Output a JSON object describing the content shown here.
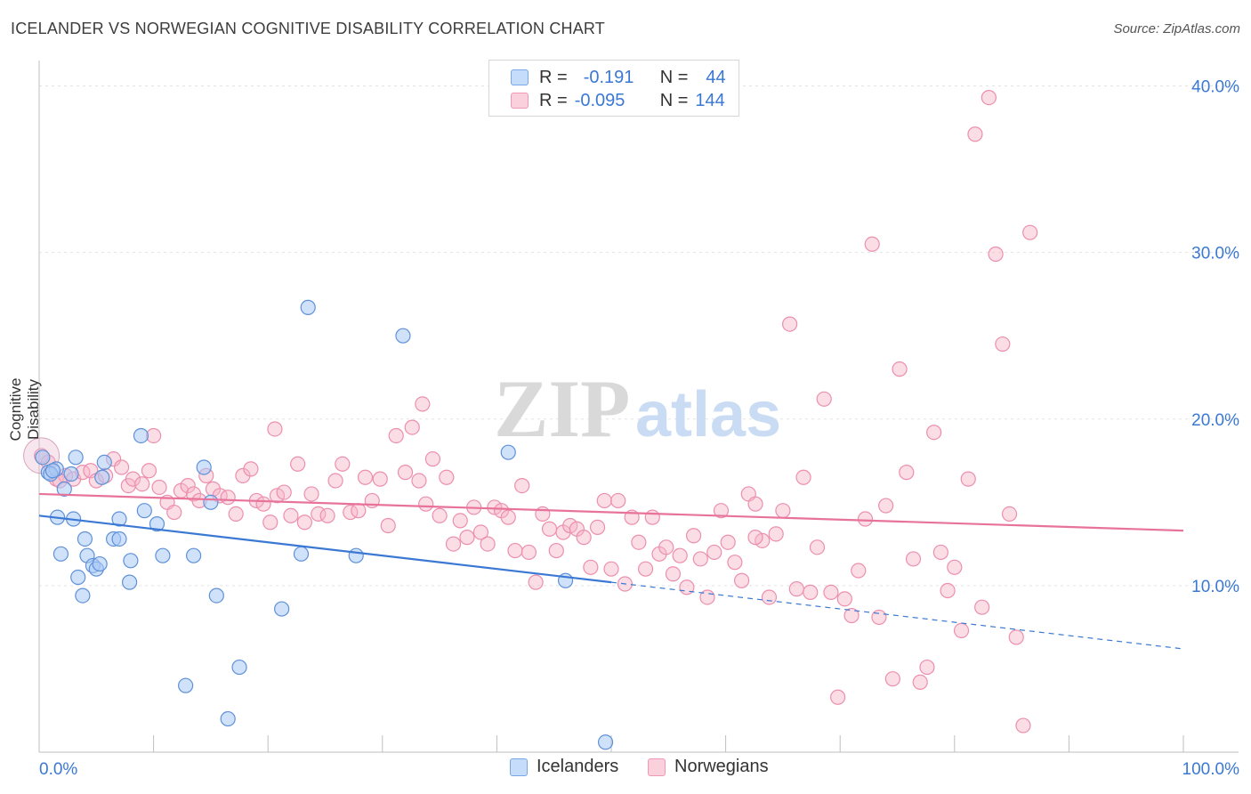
{
  "title": "ICELANDER VS NORWEGIAN COGNITIVE DISABILITY CORRELATION CHART",
  "source": "Source: ZipAtlas.com",
  "watermark": {
    "zip": "ZIP",
    "atlas": "atlas"
  },
  "legend": {
    "rows": [
      {
        "r_label": "R =",
        "r_value": "-0.191",
        "n_label": "N =",
        "n_value": "44",
        "color": "#a9c8f5"
      },
      {
        "r_label": "R =",
        "r_value": "-0.095",
        "n_label": "N =",
        "n_value": "144",
        "color": "#f7b3c8"
      }
    ]
  },
  "bottom_legend": [
    "Icelanders",
    "Norwegians"
  ],
  "chart_data": {
    "type": "scatter",
    "ylabel": "Cognitive Disability",
    "xlabel": "",
    "xlim": [
      0,
      100
    ],
    "ylim": [
      0,
      40
    ],
    "x_tick_labels": [
      "0.0%",
      "100.0%"
    ],
    "y_ticks": [
      10,
      20,
      30,
      40
    ],
    "y_tick_labels": [
      "10.0%",
      "20.0%",
      "30.0%",
      "40.0%"
    ],
    "grid": true,
    "colors": {
      "icelanders": "#3a78d4",
      "norwegians": "#e8739a",
      "icelanders_fill": "#a9c8f5",
      "norwegians_fill": "#f7b3c8"
    },
    "series": [
      {
        "name": "Icelanders",
        "r": -0.191,
        "n": 44,
        "trend": {
          "x0": 0,
          "y0": 14.2,
          "x1": 50,
          "y1": 10.2,
          "dash_to": 100,
          "dash_y": 6.2
        },
        "points": [
          [
            0.3,
            17.7
          ],
          [
            0.8,
            16.8
          ],
          [
            1.5,
            17.0
          ],
          [
            2.2,
            15.8
          ],
          [
            1.0,
            16.7
          ],
          [
            3.2,
            17.7
          ],
          [
            2.8,
            16.7
          ],
          [
            5.5,
            16.5
          ],
          [
            5.7,
            17.4
          ],
          [
            1.6,
            14.1
          ],
          [
            3.0,
            14.0
          ],
          [
            4.0,
            12.8
          ],
          [
            6.5,
            12.8
          ],
          [
            7.0,
            12.8
          ],
          [
            9.2,
            14.5
          ],
          [
            10.3,
            13.7
          ],
          [
            7.0,
            14.0
          ],
          [
            1.9,
            11.9
          ],
          [
            4.2,
            11.8
          ],
          [
            8.0,
            11.5
          ],
          [
            10.8,
            11.8
          ],
          [
            13.5,
            11.8
          ],
          [
            4.7,
            11.2
          ],
          [
            5.0,
            11.0
          ],
          [
            5.3,
            11.3
          ],
          [
            3.4,
            10.5
          ],
          [
            7.9,
            10.2
          ],
          [
            3.8,
            9.4
          ],
          [
            15.5,
            9.4
          ],
          [
            21.2,
            8.6
          ],
          [
            14.4,
            17.1
          ],
          [
            8.9,
            19.0
          ],
          [
            15.0,
            15.0
          ],
          [
            23.5,
            26.7
          ],
          [
            31.8,
            25.0
          ],
          [
            41.0,
            18.0
          ],
          [
            22.9,
            11.9
          ],
          [
            27.7,
            11.8
          ],
          [
            46.0,
            10.3
          ],
          [
            16.5,
            2.0
          ],
          [
            12.8,
            4.0
          ],
          [
            17.5,
            5.1
          ],
          [
            49.5,
            0.6
          ],
          [
            1.2,
            16.9
          ]
        ]
      },
      {
        "name": "Norwegians",
        "r": -0.095,
        "n": 144,
        "trend": {
          "x0": 0,
          "y0": 15.5,
          "x1": 100,
          "y1": 13.3
        },
        "points": [
          [
            0.2,
            17.8
          ],
          [
            0.8,
            17.4
          ],
          [
            1.5,
            16.4
          ],
          [
            2.3,
            16.6
          ],
          [
            3.0,
            16.4
          ],
          [
            3.8,
            16.8
          ],
          [
            4.5,
            16.9
          ],
          [
            5.0,
            16.3
          ],
          [
            5.8,
            16.6
          ],
          [
            6.5,
            17.6
          ],
          [
            7.2,
            17.1
          ],
          [
            7.8,
            16.0
          ],
          [
            8.2,
            16.4
          ],
          [
            9.0,
            16.1
          ],
          [
            9.6,
            16.9
          ],
          [
            10.0,
            19.0
          ],
          [
            10.5,
            15.9
          ],
          [
            11.2,
            15.0
          ],
          [
            11.8,
            14.4
          ],
          [
            12.4,
            15.7
          ],
          [
            13.0,
            16.0
          ],
          [
            13.5,
            15.5
          ],
          [
            14.0,
            15.1
          ],
          [
            14.6,
            16.6
          ],
          [
            15.2,
            15.8
          ],
          [
            15.8,
            15.4
          ],
          [
            16.5,
            15.3
          ],
          [
            17.2,
            14.3
          ],
          [
            17.8,
            16.6
          ],
          [
            18.5,
            17.0
          ],
          [
            19.0,
            15.1
          ],
          [
            19.6,
            14.9
          ],
          [
            20.2,
            13.8
          ],
          [
            20.8,
            15.4
          ],
          [
            21.4,
            15.6
          ],
          [
            22.0,
            14.2
          ],
          [
            22.6,
            17.3
          ],
          [
            23.2,
            13.8
          ],
          [
            23.8,
            15.5
          ],
          [
            24.4,
            14.3
          ],
          [
            25.2,
            14.2
          ],
          [
            25.9,
            16.3
          ],
          [
            26.5,
            17.3
          ],
          [
            27.2,
            14.4
          ],
          [
            27.9,
            14.5
          ],
          [
            28.5,
            16.5
          ],
          [
            29.1,
            15.1
          ],
          [
            29.8,
            16.4
          ],
          [
            30.5,
            13.6
          ],
          [
            31.2,
            19.0
          ],
          [
            32.0,
            16.8
          ],
          [
            32.6,
            19.5
          ],
          [
            33.2,
            16.3
          ],
          [
            33.8,
            14.9
          ],
          [
            34.4,
            17.6
          ],
          [
            35.0,
            14.2
          ],
          [
            35.6,
            16.5
          ],
          [
            36.2,
            12.5
          ],
          [
            36.8,
            13.9
          ],
          [
            37.4,
            12.9
          ],
          [
            38.0,
            14.7
          ],
          [
            38.6,
            13.2
          ],
          [
            39.2,
            12.5
          ],
          [
            39.8,
            14.7
          ],
          [
            40.4,
            14.5
          ],
          [
            41.0,
            14.1
          ],
          [
            41.6,
            12.1
          ],
          [
            42.2,
            16.0
          ],
          [
            42.8,
            12.0
          ],
          [
            43.4,
            10.2
          ],
          [
            44.0,
            14.3
          ],
          [
            44.6,
            13.4
          ],
          [
            45.2,
            12.1
          ],
          [
            45.8,
            13.2
          ],
          [
            46.4,
            13.6
          ],
          [
            47.0,
            13.4
          ],
          [
            47.6,
            12.9
          ],
          [
            48.2,
            11.1
          ],
          [
            48.8,
            13.5
          ],
          [
            49.4,
            15.1
          ],
          [
            50.0,
            11.0
          ],
          [
            50.6,
            15.1
          ],
          [
            51.2,
            10.1
          ],
          [
            51.8,
            14.1
          ],
          [
            52.4,
            12.6
          ],
          [
            53.0,
            11.0
          ],
          [
            53.6,
            14.1
          ],
          [
            54.2,
            11.9
          ],
          [
            54.8,
            12.3
          ],
          [
            55.4,
            10.7
          ],
          [
            56.0,
            11.8
          ],
          [
            56.6,
            9.9
          ],
          [
            57.2,
            13.0
          ],
          [
            57.8,
            11.6
          ],
          [
            58.4,
            9.3
          ],
          [
            59.0,
            12.0
          ],
          [
            59.6,
            14.5
          ],
          [
            60.2,
            12.6
          ],
          [
            60.8,
            11.4
          ],
          [
            61.4,
            10.3
          ],
          [
            62.0,
            15.5
          ],
          [
            62.6,
            14.9
          ],
          [
            63.2,
            12.7
          ],
          [
            63.8,
            9.3
          ],
          [
            64.4,
            13.1
          ],
          [
            65.0,
            14.5
          ],
          [
            65.6,
            25.7
          ],
          [
            66.2,
            9.8
          ],
          [
            66.8,
            16.5
          ],
          [
            67.4,
            9.6
          ],
          [
            68.0,
            12.3
          ],
          [
            68.6,
            21.2
          ],
          [
            69.2,
            9.6
          ],
          [
            69.8,
            3.3
          ],
          [
            70.4,
            9.2
          ],
          [
            71.0,
            8.2
          ],
          [
            71.6,
            10.9
          ],
          [
            72.2,
            14.0
          ],
          [
            72.8,
            30.5
          ],
          [
            73.4,
            8.1
          ],
          [
            74.0,
            14.8
          ],
          [
            74.6,
            4.4
          ],
          [
            75.2,
            23.0
          ],
          [
            75.8,
            16.8
          ],
          [
            76.4,
            11.6
          ],
          [
            77.0,
            4.2
          ],
          [
            77.6,
            5.1
          ],
          [
            78.2,
            19.2
          ],
          [
            78.8,
            12.0
          ],
          [
            79.4,
            9.7
          ],
          [
            80.0,
            11.1
          ],
          [
            80.6,
            7.3
          ],
          [
            81.2,
            16.4
          ],
          [
            81.8,
            37.1
          ],
          [
            82.4,
            8.7
          ],
          [
            83.0,
            39.3
          ],
          [
            83.6,
            29.9
          ],
          [
            84.2,
            24.5
          ],
          [
            84.8,
            14.3
          ],
          [
            85.4,
            6.9
          ],
          [
            86.0,
            1.6
          ],
          [
            86.6,
            31.2
          ],
          [
            20.6,
            19.4
          ],
          [
            33.5,
            20.9
          ],
          [
            1.8,
            16.3
          ],
          [
            62.6,
            12.9
          ]
        ]
      }
    ]
  }
}
